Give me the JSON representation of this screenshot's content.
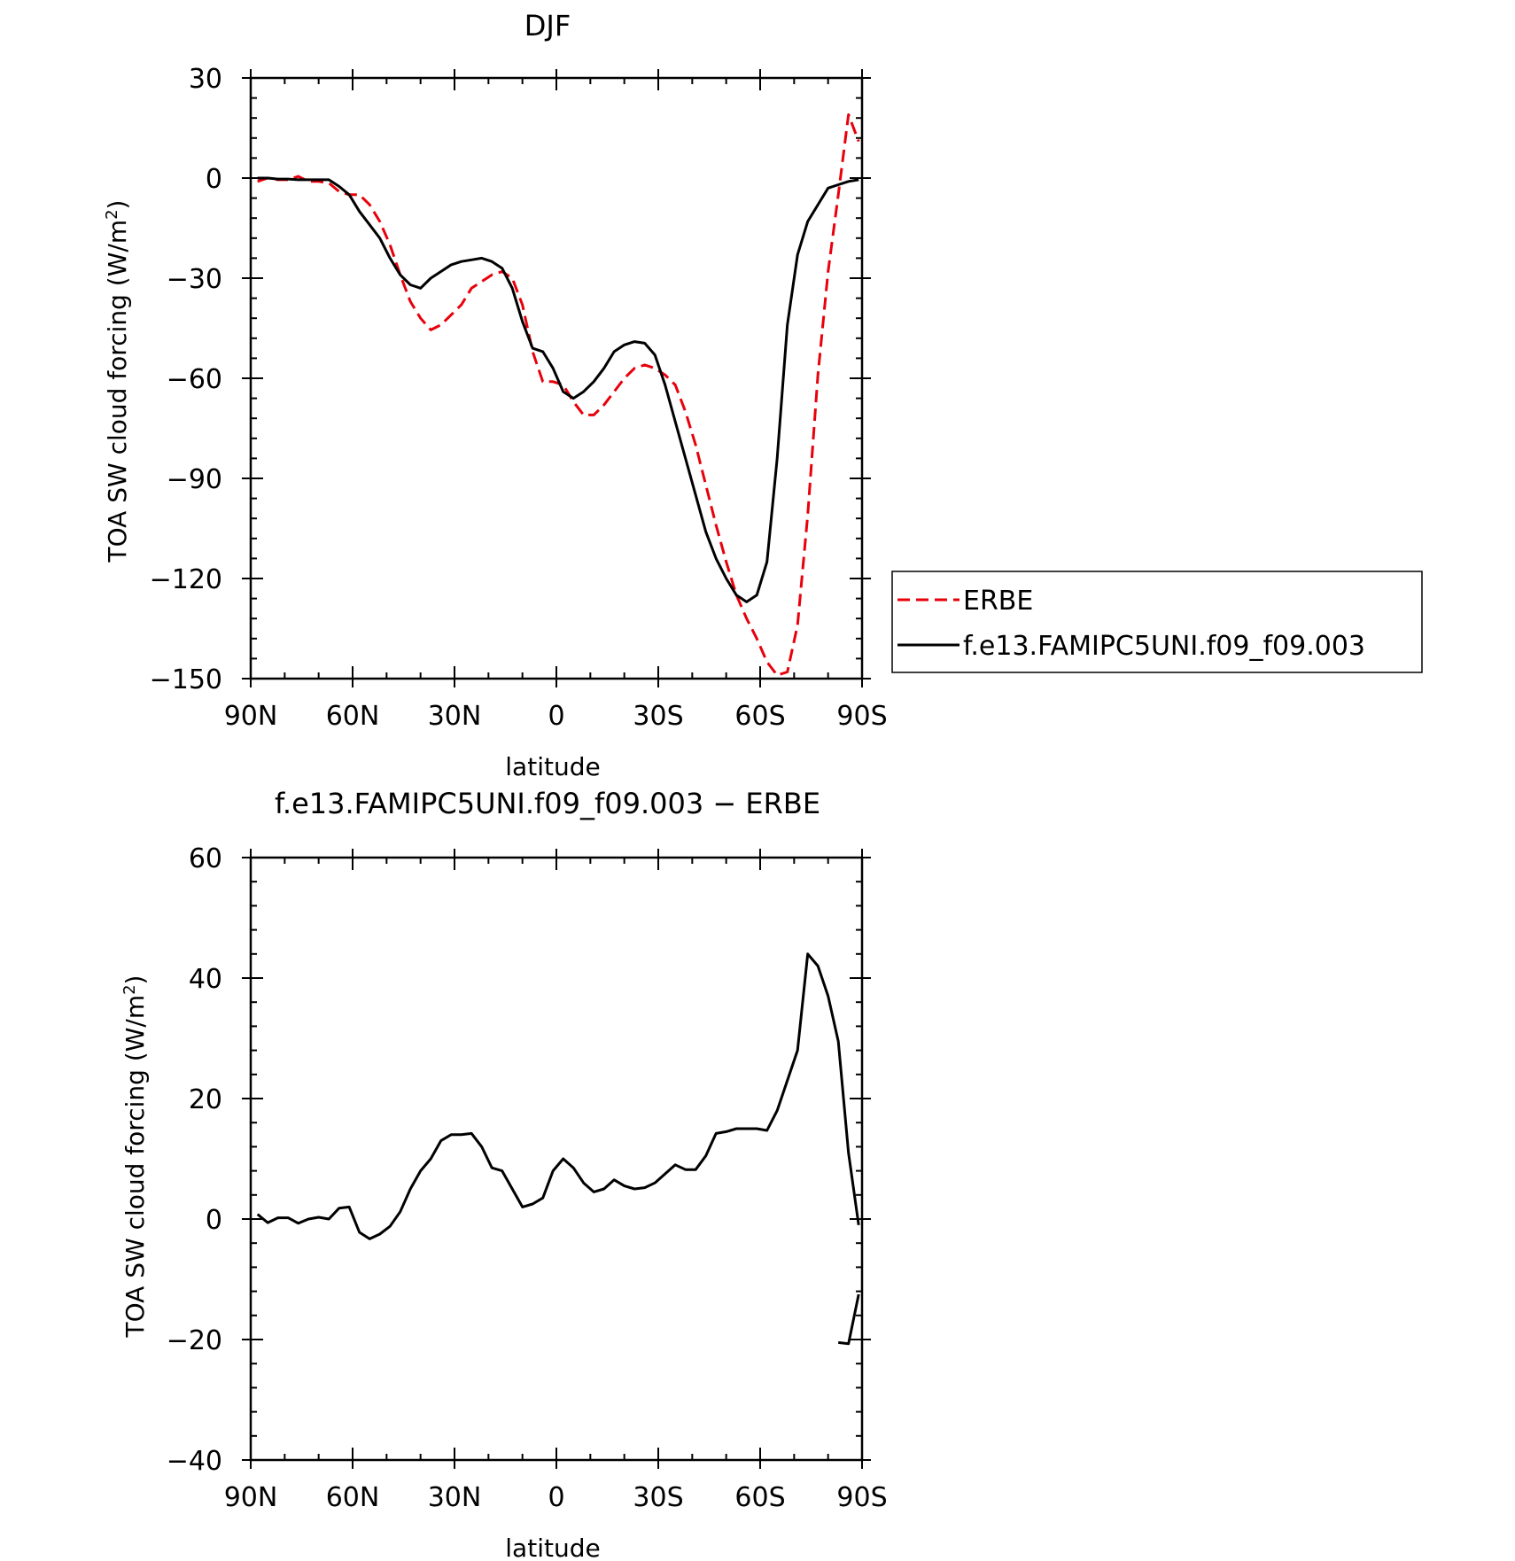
{
  "chart_data": [
    {
      "type": "line",
      "title": "DJF",
      "xlabel": "latitude",
      "ylabel_main": "TOA SW cloud forcing (W/m",
      "ylabel_sup": "2",
      "ylabel_tail": ")",
      "xlim": [
        90,
        -90
      ],
      "ylim": [
        -150,
        30
      ],
      "xticks": [
        {
          "value": 90,
          "label": "90N"
        },
        {
          "value": 60,
          "label": "60N"
        },
        {
          "value": 30,
          "label": "30N"
        },
        {
          "value": 0,
          "label": "0"
        },
        {
          "value": -30,
          "label": "30S"
        },
        {
          "value": -60,
          "label": "60S"
        },
        {
          "value": -90,
          "label": "90S"
        }
      ],
      "yticks": [
        30,
        0,
        -30,
        -60,
        -90,
        -120,
        -150
      ],
      "yticklabels": [
        "30",
        "0",
        "−30",
        "−60",
        "−90",
        "−120",
        "−150"
      ],
      "grid": false,
      "legend_position": "right",
      "series": [
        {
          "name": "ERBE",
          "color": "#e8000b",
          "dash": "dashed",
          "x": [
            88,
            85,
            82,
            79,
            76,
            73,
            70,
            67,
            64,
            61,
            58,
            55,
            52,
            49,
            46,
            43,
            40,
            37,
            34,
            31,
            28,
            25,
            22,
            19,
            16,
            13,
            10,
            7,
            4,
            1,
            -2,
            -5,
            -8,
            -11,
            -14,
            -17,
            -20,
            -23,
            -26,
            -29,
            -32,
            -35,
            -38,
            -41,
            -44,
            -47,
            -50,
            -53,
            -56,
            -59,
            -62,
            -65,
            -68,
            -71,
            -74,
            -77,
            -80,
            -83,
            -86,
            -89
          ],
          "y": [
            -1,
            0,
            -0.5,
            -0.5,
            0.5,
            -1,
            -1,
            -1.5,
            -4,
            -5,
            -5,
            -8,
            -13,
            -20,
            -29,
            -37,
            -42,
            -45.5,
            -44,
            -41,
            -38,
            -33,
            -31,
            -29,
            -28,
            -30,
            -38,
            -52,
            -61,
            -61,
            -62,
            -67,
            -71,
            -71,
            -68,
            -64,
            -60,
            -57,
            -56,
            -57,
            -59,
            -62,
            -70,
            -80,
            -92,
            -104,
            -115,
            -125,
            -132,
            -138,
            -145,
            -149,
            -148,
            -134,
            -101,
            -59,
            -28,
            -5,
            19,
            11
          ]
        },
        {
          "name": "f.e13.FAMIPC5UNI.f09_f09.003",
          "color": "#000000",
          "dash": "solid",
          "x": [
            88,
            85,
            82,
            79,
            76,
            73,
            70,
            67,
            64,
            61,
            58,
            55,
            52,
            49,
            46,
            43,
            40,
            37,
            34,
            31,
            28,
            25,
            22,
            19,
            16,
            13,
            10,
            7,
            4,
            1,
            -2,
            -5,
            -8,
            -11,
            -14,
            -17,
            -20,
            -23,
            -26,
            -29,
            -32,
            -35,
            -38,
            -41,
            -44,
            -47,
            -50,
            -53,
            -56,
            -59,
            -62,
            -65,
            -68,
            -71,
            -74,
            -77,
            -80,
            -83,
            -86,
            -89
          ],
          "y": [
            0,
            0,
            -0.3,
            -0.3,
            -0.5,
            -0.5,
            -0.5,
            -0.5,
            -2.5,
            -5,
            -10,
            -14,
            -18,
            -24,
            -29,
            -32,
            -33,
            -30,
            -28,
            -26,
            -25,
            -24.5,
            -24,
            -25,
            -27,
            -33,
            -43,
            -51,
            -52,
            -57,
            -64,
            -66,
            -64,
            -61,
            -57,
            -52,
            -50,
            -49,
            -49.5,
            -53,
            -62,
            -73,
            -84,
            -95,
            -106,
            -114,
            -120,
            -125,
            -127,
            -125,
            -115,
            -84,
            -44,
            -23,
            -13,
            -8,
            -3,
            -2,
            -1,
            -0.5
          ]
        }
      ]
    },
    {
      "type": "line",
      "title": "f.e13.FAMIPC5UNI.f09_f09.003 − ERBE",
      "xlabel": "latitude",
      "ylabel_main": "TOA SW cloud forcing (W/m",
      "ylabel_sup": "2",
      "ylabel_tail": ")",
      "xlim": [
        90,
        -90
      ],
      "ylim": [
        -40,
        60
      ],
      "xticks": [
        {
          "value": 90,
          "label": "90N"
        },
        {
          "value": 60,
          "label": "60N"
        },
        {
          "value": 30,
          "label": "30N"
        },
        {
          "value": 0,
          "label": "0"
        },
        {
          "value": -30,
          "label": "30S"
        },
        {
          "value": -60,
          "label": "60S"
        },
        {
          "value": -90,
          "label": "90S"
        }
      ],
      "yticks": [
        60,
        40,
        20,
        0,
        -20,
        -40
      ],
      "yticklabels": [
        "60",
        "40",
        "20",
        "0",
        "−20",
        "−40"
      ],
      "grid": false,
      "series": [
        {
          "name": "",
          "color": "#000000",
          "dash": "solid",
          "x": [
            88,
            85,
            82,
            79,
            76,
            73,
            70,
            67,
            64,
            61,
            58,
            55,
            52,
            49,
            46,
            43,
            40,
            37,
            34,
            31,
            28,
            25,
            22,
            19,
            16,
            13,
            10,
            7,
            4,
            1,
            -2,
            -5,
            -8,
            -11,
            -14,
            -17,
            -20,
            -23,
            -26,
            -29,
            -32,
            -35,
            -38,
            -41,
            -44,
            -47,
            -50,
            -53,
            -56,
            -59,
            -62,
            -65,
            -68,
            -71,
            -74,
            -77,
            -80,
            -83,
            -86,
            -89
          ],
          "y": [
            0.8,
            -0.6,
            0.2,
            0.2,
            -0.7,
            0,
            0.3,
            0,
            1.8,
            2,
            -2.2,
            -3.3,
            -2.5,
            -1.2,
            1.2,
            5,
            8,
            10,
            13,
            14,
            14,
            14.2,
            12,
            8.5,
            8,
            5,
            2,
            2.5,
            3.5,
            8,
            10,
            8.5,
            6,
            4.5,
            5,
            6.5,
            5.5,
            5,
            5.2,
            6,
            7.5,
            9,
            8.2,
            8.2,
            10.5,
            14.2,
            14.5,
            15,
            15,
            15,
            14.7,
            18,
            23,
            28,
            44,
            42,
            37,
            29.5,
            11,
            -1
          ]
        },
        {
          "name": "",
          "color": "#000000",
          "dash": "solid",
          "x": [
            -83,
            -86,
            -89
          ],
          "y": [
            -20.5,
            -20.7,
            -12.5
          ]
        }
      ]
    }
  ]
}
